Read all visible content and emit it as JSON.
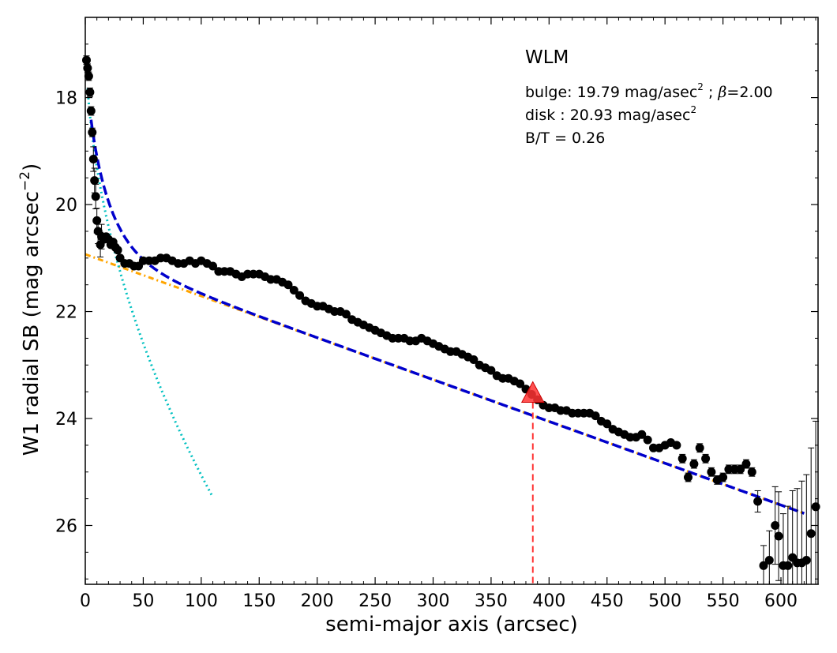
{
  "chart_data": {
    "type": "scatter",
    "title": "",
    "xlabel": "semi-major axis (arcsec)",
    "ylabel_main": "W1 radial SB (mag arcsec",
    "ylabel_exp": "−2",
    "ylabel_close": ")",
    "xlim": [
      0,
      632
    ],
    "ylim": [
      27.1,
      16.5
    ],
    "y_inverted": true,
    "grid": false,
    "xticks": [
      0,
      50,
      100,
      150,
      200,
      250,
      300,
      350,
      400,
      450,
      500,
      550,
      600
    ],
    "yticks": [
      18,
      20,
      22,
      24,
      26
    ],
    "annotations": {
      "galaxy": "WLM",
      "bulge_prefix": "bulge: 19.79 mag/asec",
      "bulge_exp": "2",
      "bulge_mid": " ; ",
      "beta_symbol": "β",
      "bulge_beta": "=2.00",
      "disk_prefix": "disk  : 20.93 mag/asec",
      "disk_exp": "2",
      "bt_ratio": "B/T = 0.26"
    },
    "marker_line": {
      "x": 386,
      "y": 23.55,
      "color": "#ff3333"
    },
    "colors": {
      "data": "#000000",
      "total_fit": "#0000cc",
      "disk_fit": "#ffa500",
      "bulge_fit": "#00c0c0",
      "marker": "#ff3333"
    },
    "series": [
      {
        "points": [
          [
            1,
            17.3
          ],
          [
            2,
            17.45
          ],
          [
            3,
            17.6
          ],
          [
            4,
            17.9
          ],
          [
            5,
            18.25
          ],
          [
            6,
            18.65
          ],
          [
            7,
            19.15
          ],
          [
            8,
            19.55
          ],
          [
            9,
            19.85
          ],
          [
            10,
            20.3
          ],
          [
            11,
            20.5
          ],
          [
            13,
            20.75
          ],
          [
            14,
            20.6
          ],
          [
            16,
            20.65
          ],
          [
            18,
            20.6
          ],
          [
            20,
            20.65
          ],
          [
            22,
            20.75
          ],
          [
            24,
            20.7
          ],
          [
            26,
            20.8
          ],
          [
            28,
            20.85
          ],
          [
            30,
            21.0
          ],
          [
            34,
            21.1
          ],
          [
            38,
            21.1
          ],
          [
            42,
            21.15
          ],
          [
            46,
            21.15
          ],
          [
            50,
            21.05
          ],
          [
            55,
            21.05
          ],
          [
            60,
            21.05
          ],
          [
            65,
            21.0
          ],
          [
            70,
            21.0
          ],
          [
            75,
            21.05
          ],
          [
            80,
            21.1
          ],
          [
            85,
            21.1
          ],
          [
            90,
            21.05
          ],
          [
            95,
            21.1
          ],
          [
            100,
            21.05
          ],
          [
            105,
            21.1
          ],
          [
            110,
            21.15
          ],
          [
            115,
            21.25
          ],
          [
            120,
            21.25
          ],
          [
            125,
            21.25
          ],
          [
            130,
            21.3
          ],
          [
            135,
            21.35
          ],
          [
            140,
            21.3
          ],
          [
            145,
            21.3
          ],
          [
            150,
            21.3
          ],
          [
            155,
            21.35
          ],
          [
            160,
            21.4
          ],
          [
            165,
            21.4
          ],
          [
            170,
            21.45
          ],
          [
            175,
            21.5
          ],
          [
            180,
            21.6
          ],
          [
            185,
            21.7
          ],
          [
            190,
            21.8
          ],
          [
            195,
            21.85
          ],
          [
            200,
            21.9
          ],
          [
            205,
            21.9
          ],
          [
            210,
            21.95
          ],
          [
            215,
            22.0
          ],
          [
            220,
            22.0
          ],
          [
            225,
            22.05
          ],
          [
            230,
            22.15
          ],
          [
            235,
            22.2
          ],
          [
            240,
            22.25
          ],
          [
            245,
            22.3
          ],
          [
            250,
            22.35
          ],
          [
            255,
            22.4
          ],
          [
            260,
            22.45
          ],
          [
            265,
            22.5
          ],
          [
            270,
            22.5
          ],
          [
            275,
            22.5
          ],
          [
            280,
            22.55
          ],
          [
            285,
            22.55
          ],
          [
            290,
            22.5
          ],
          [
            295,
            22.55
          ],
          [
            300,
            22.6
          ],
          [
            305,
            22.65
          ],
          [
            310,
            22.7
          ],
          [
            315,
            22.75
          ],
          [
            320,
            22.75
          ],
          [
            325,
            22.8
          ],
          [
            330,
            22.85
          ],
          [
            335,
            22.9
          ],
          [
            340,
            23.0
          ],
          [
            345,
            23.05
          ],
          [
            350,
            23.1
          ],
          [
            355,
            23.2
          ],
          [
            360,
            23.25
          ],
          [
            365,
            23.25
          ],
          [
            370,
            23.3
          ],
          [
            375,
            23.35
          ],
          [
            380,
            23.45
          ],
          [
            385,
            23.55
          ],
          [
            390,
            23.65
          ],
          [
            395,
            23.75
          ],
          [
            400,
            23.8
          ],
          [
            405,
            23.8
          ],
          [
            410,
            23.85
          ],
          [
            415,
            23.85
          ],
          [
            420,
            23.9
          ],
          [
            425,
            23.9
          ],
          [
            430,
            23.9
          ],
          [
            435,
            23.9
          ],
          [
            440,
            23.95
          ],
          [
            445,
            24.05
          ],
          [
            450,
            24.1
          ],
          [
            455,
            24.2
          ],
          [
            460,
            24.25
          ],
          [
            465,
            24.3
          ],
          [
            470,
            24.35
          ],
          [
            475,
            24.35
          ],
          [
            480,
            24.3
          ],
          [
            485,
            24.4
          ],
          [
            490,
            24.55
          ],
          [
            495,
            24.55
          ],
          [
            500,
            24.5
          ],
          [
            505,
            24.45
          ],
          [
            510,
            24.5
          ],
          [
            515,
            24.75
          ],
          [
            520,
            25.1
          ],
          [
            525,
            24.85
          ],
          [
            530,
            24.55
          ],
          [
            535,
            24.75
          ],
          [
            540,
            25.0
          ],
          [
            545,
            25.15
          ],
          [
            550,
            25.1
          ],
          [
            555,
            24.95
          ],
          [
            560,
            24.95
          ],
          [
            565,
            24.95
          ],
          [
            570,
            24.85
          ],
          [
            575,
            25.0
          ],
          [
            580,
            25.55
          ],
          [
            585,
            26.75
          ],
          [
            590,
            26.65
          ],
          [
            595,
            26.0
          ],
          [
            598,
            26.2
          ],
          [
            602,
            26.75
          ],
          [
            606,
            26.75
          ],
          [
            610,
            26.6
          ],
          [
            614,
            26.7
          ],
          [
            618,
            26.7
          ],
          [
            622,
            26.65
          ],
          [
            626,
            26.15
          ],
          [
            630,
            25.65
          ]
        ]
      }
    ]
  }
}
